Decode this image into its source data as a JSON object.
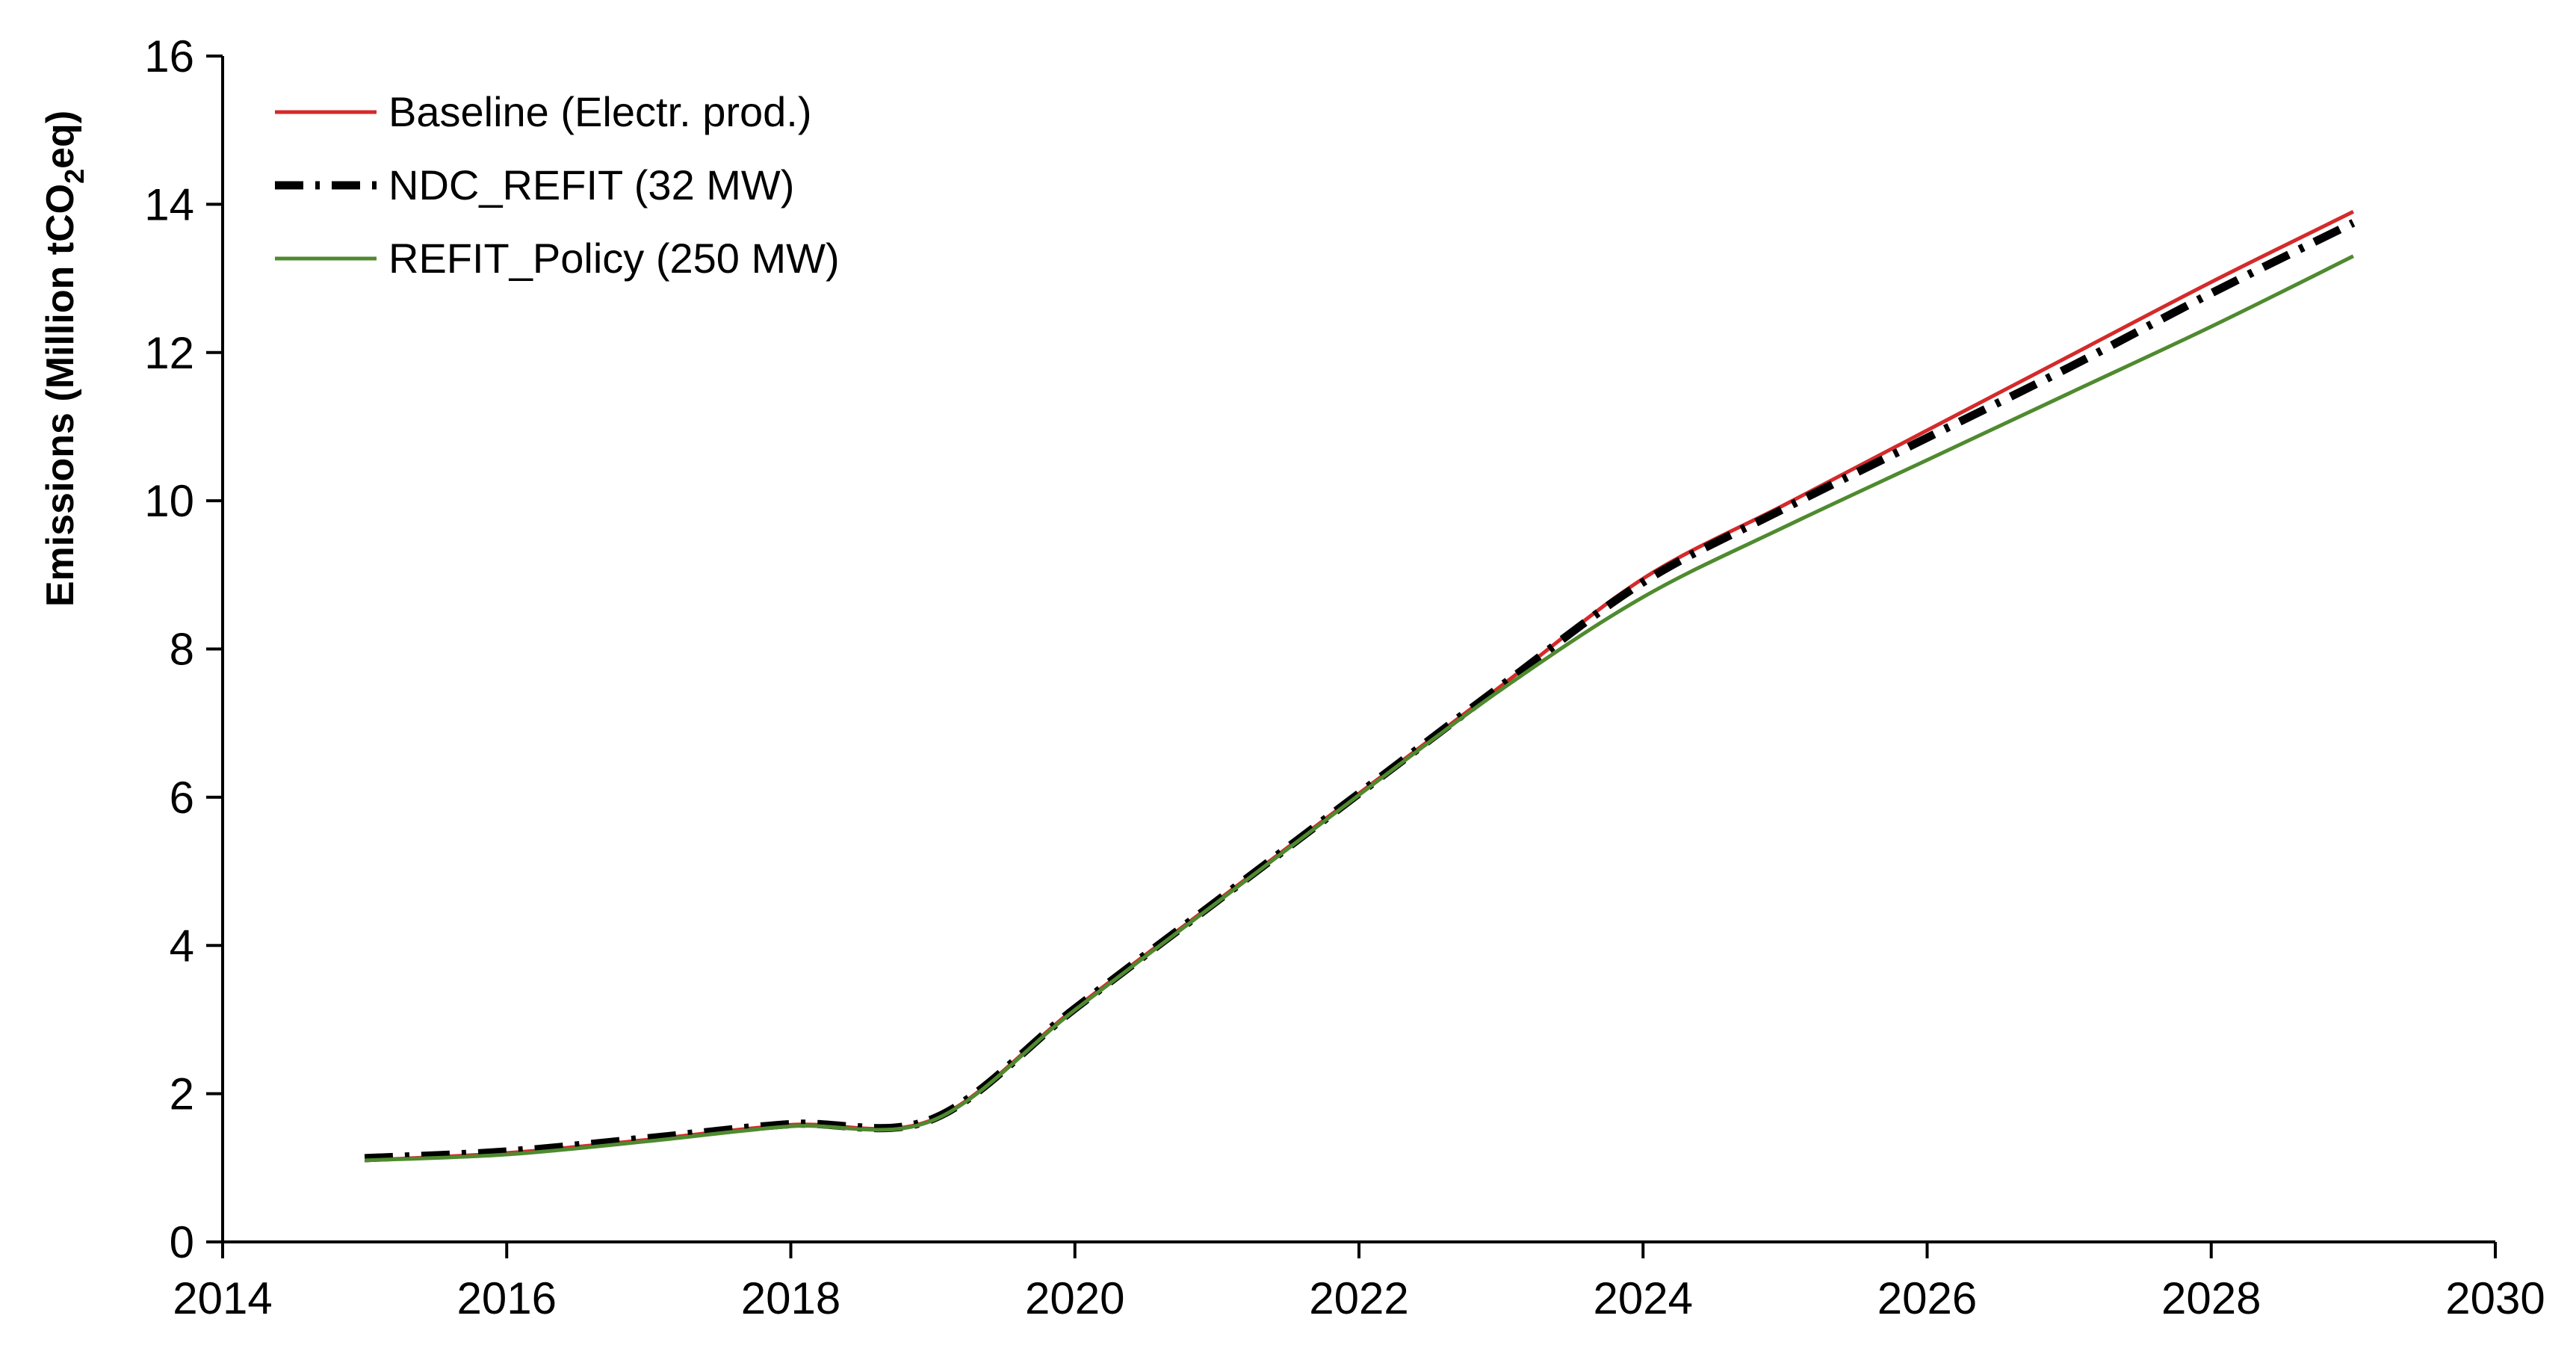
{
  "chart_data": {
    "type": "line",
    "title": "",
    "xlabel": "",
    "ylabel": {
      "prefix": "Emissions (Million tCO",
      "subscript": "2",
      "suffix": "eq)"
    },
    "xlim": [
      2014,
      2030
    ],
    "ylim": [
      0,
      16
    ],
    "xticks": [
      2014,
      2016,
      2018,
      2020,
      2022,
      2024,
      2026,
      2028,
      2030
    ],
    "yticks": [
      0,
      2,
      4,
      6,
      8,
      10,
      12,
      14,
      16
    ],
    "grid": false,
    "legend_position": "top-left",
    "x": [
      2015,
      2016,
      2017,
      2018,
      2019,
      2020,
      2021,
      2022,
      2023,
      2024,
      2025,
      2026,
      2027,
      2028,
      2029
    ],
    "series": [
      {
        "name": "Baseline (Electr. prod.)",
        "color": "#d42a2a",
        "style": "solid",
        "values": [
          1.1,
          1.2,
          1.38,
          1.58,
          1.65,
          3.15,
          4.6,
          6.05,
          7.5,
          8.95,
          9.95,
          10.95,
          11.95,
          12.95,
          13.9
        ]
      },
      {
        "name": "NDC_REFIT (32 MW)",
        "color": "#000000",
        "style": "dash-dot",
        "values": [
          1.13,
          1.22,
          1.4,
          1.59,
          1.66,
          3.15,
          4.6,
          6.05,
          7.5,
          8.9,
          9.9,
          10.85,
          11.8,
          12.8,
          13.75
        ]
      },
      {
        "name": "REFIT_Policy (250 MW)",
        "color": "#4f8a2f",
        "style": "solid",
        "values": [
          1.1,
          1.18,
          1.36,
          1.56,
          1.64,
          3.13,
          4.58,
          6.03,
          7.45,
          8.7,
          9.65,
          10.55,
          11.45,
          12.35,
          13.3
        ]
      }
    ]
  }
}
